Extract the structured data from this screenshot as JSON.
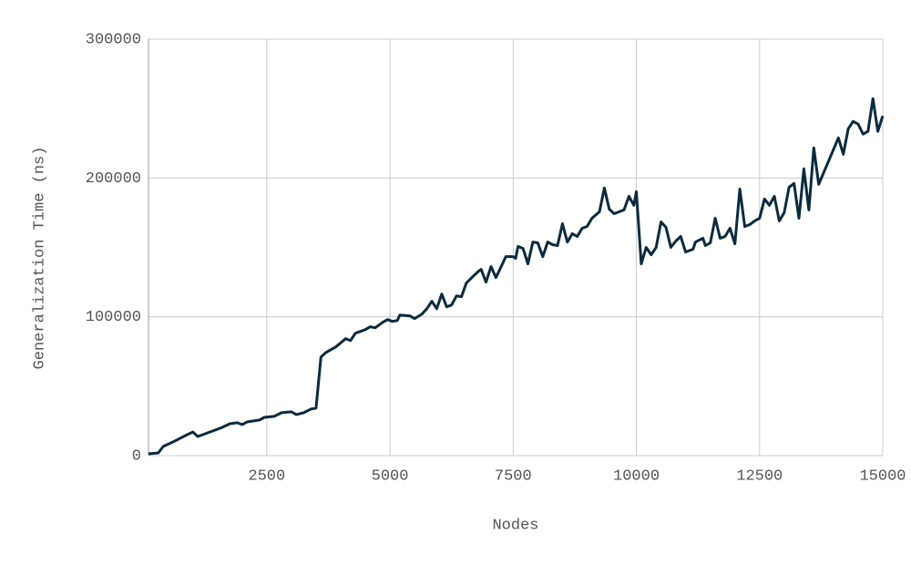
{
  "chart_data": {
    "type": "line",
    "x_label": "Nodes",
    "y_label": "Generalization Time (ns)",
    "x": [
      100,
      300,
      400,
      600,
      850,
      1000,
      1100,
      1200,
      1300,
      1450,
      1600,
      1750,
      1900,
      2000,
      2100,
      2350,
      2450,
      2650,
      2800,
      3000,
      3100,
      3250,
      3400,
      3500,
      3600,
      3700,
      3900,
      4100,
      4200,
      4300,
      4500,
      4600,
      4700,
      4850,
      4950,
      5050,
      5150,
      5200,
      5400,
      5500,
      5650,
      5750,
      5850,
      5950,
      6050,
      6150,
      6250,
      6350,
      6450,
      6550,
      6700,
      6800,
      6850,
      6950,
      7050,
      7150,
      7300,
      7350,
      7500,
      7550,
      7600,
      7700,
      7800,
      7900,
      8000,
      8100,
      8200,
      8300,
      8400,
      8500,
      8600,
      8700,
      8800,
      8900,
      9000,
      9100,
      9250,
      9350,
      9450,
      9550,
      9700,
      9750,
      9850,
      9950,
      10000,
      10100,
      10200,
      10300,
      10400,
      10500,
      10600,
      10700,
      10800,
      10900,
      11000,
      11150,
      11200,
      11350,
      11400,
      11500,
      11600,
      11700,
      11800,
      11900,
      12000,
      12100,
      12200,
      12300,
      12400,
      12500,
      12600,
      12700,
      12800,
      12900,
      13000,
      13100,
      13200,
      13300,
      13400,
      13500,
      13600,
      13700,
      14100,
      14200,
      14300,
      14400,
      14500,
      14600,
      14700,
      14800,
      14900,
      15000
    ],
    "series": [
      {
        "name": "Generalization Time",
        "color": "#0b2b3e",
        "values": [
          1300,
          2000,
          6600,
          9900,
          14500,
          17000,
          13800,
          15100,
          16400,
          18400,
          20400,
          23000,
          23700,
          22400,
          24300,
          25700,
          27600,
          28300,
          30900,
          31600,
          29600,
          30900,
          33600,
          34200,
          71000,
          74300,
          78300,
          84200,
          82900,
          88200,
          90800,
          92800,
          92100,
          96000,
          98000,
          96700,
          97400,
          101300,
          100700,
          98700,
          102000,
          105900,
          111200,
          105900,
          116400,
          107200,
          108500,
          115100,
          114500,
          124300,
          129600,
          132900,
          134200,
          125000,
          136200,
          128300,
          139500,
          143400,
          143400,
          142100,
          150700,
          149300,
          138200,
          153900,
          153300,
          143400,
          153900,
          152000,
          151300,
          167100,
          153900,
          159900,
          157900,
          163800,
          165100,
          171000,
          175700,
          192800,
          177600,
          174300,
          176300,
          177000,
          186800,
          180300,
          190100,
          138200,
          150000,
          144700,
          150000,
          168400,
          164500,
          150000,
          154600,
          157900,
          146700,
          148700,
          153900,
          156600,
          151300,
          153300,
          171000,
          156600,
          157900,
          163800,
          152600,
          192100,
          165100,
          166400,
          169100,
          171000,
          184900,
          180300,
          186800,
          169100,
          175000,
          193400,
          196100,
          171000,
          206600,
          177000,
          221700,
          195400,
          228900,
          217100,
          235500,
          240800,
          238800,
          231600,
          233600,
          257200,
          233600,
          244700
        ]
      }
    ],
    "xlim": [
      100,
      15000
    ],
    "ylim": [
      0,
      300000
    ],
    "xticks": [
      2500,
      5000,
      7500,
      10000,
      12500,
      15000
    ],
    "yticks": [
      0,
      100000,
      200000,
      300000
    ],
    "grid": true
  }
}
